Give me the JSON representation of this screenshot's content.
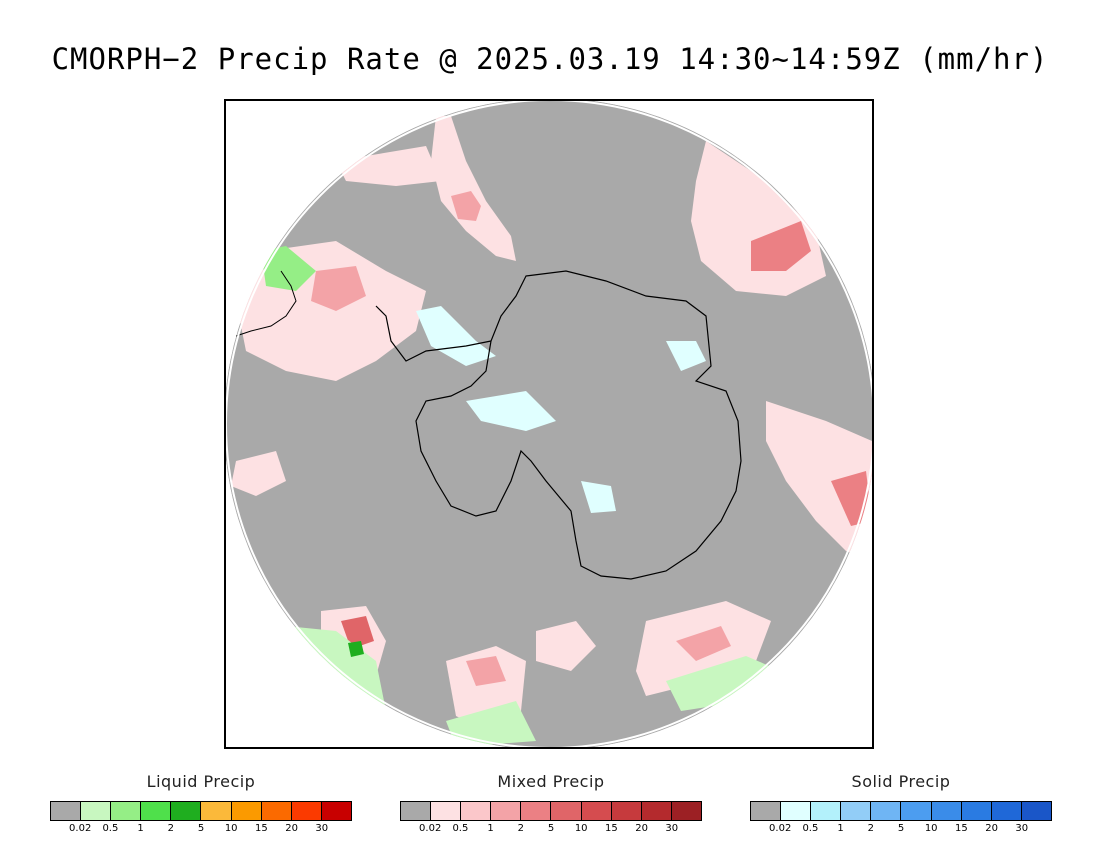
{
  "title": "CMORPH−2 Precip Rate @ 2025.03.19 14:30~14:59Z (mm/hr)",
  "legends": [
    {
      "title": "Liquid Precip",
      "colors": [
        "#a9a9a9",
        "#c8f7c0",
        "#95ee86",
        "#4fe04b",
        "#1fae1f",
        "#fbb93a",
        "#fb9a00",
        "#fb6a00",
        "#fb3a00",
        "#c80000"
      ],
      "ticks": [
        "0.02",
        "0.5",
        "1",
        "2",
        "5",
        "10",
        "15",
        "20",
        "30"
      ]
    },
    {
      "title": "Mixed Precip",
      "colors": [
        "#a9a9a9",
        "#fde1e3",
        "#fbc7ca",
        "#f3a3a7",
        "#eb8084",
        "#e06568",
        "#d54c4f",
        "#c63a3d",
        "#b42a2d",
        "#9c2024"
      ],
      "ticks": [
        "0.02",
        "0.5",
        "1",
        "2",
        "5",
        "10",
        "15",
        "20",
        "30"
      ]
    },
    {
      "title": "Solid Precip",
      "colors": [
        "#a9a9a9",
        "#e0ffff",
        "#b3f1fb",
        "#92cdf7",
        "#6fb5f4",
        "#4c9df0",
        "#3a8ce9",
        "#2a7be2",
        "#1f68d8",
        "#1a56c8"
      ],
      "ticks": [
        "0.02",
        "0.5",
        "1",
        "2",
        "5",
        "10",
        "15",
        "20",
        "30"
      ]
    }
  ],
  "colors": {
    "no_data_gray": "#a9a9a9",
    "mixed_light": "#fde1e3",
    "mixed_mid": "#f3a3a7",
    "mixed_dark": "#e06568",
    "liquid_light": "#c8f7c0",
    "liquid_mid": "#95ee86",
    "liquid_dark": "#1fae1f",
    "solid_light": "#e0ffff",
    "coastline": "#000000"
  }
}
